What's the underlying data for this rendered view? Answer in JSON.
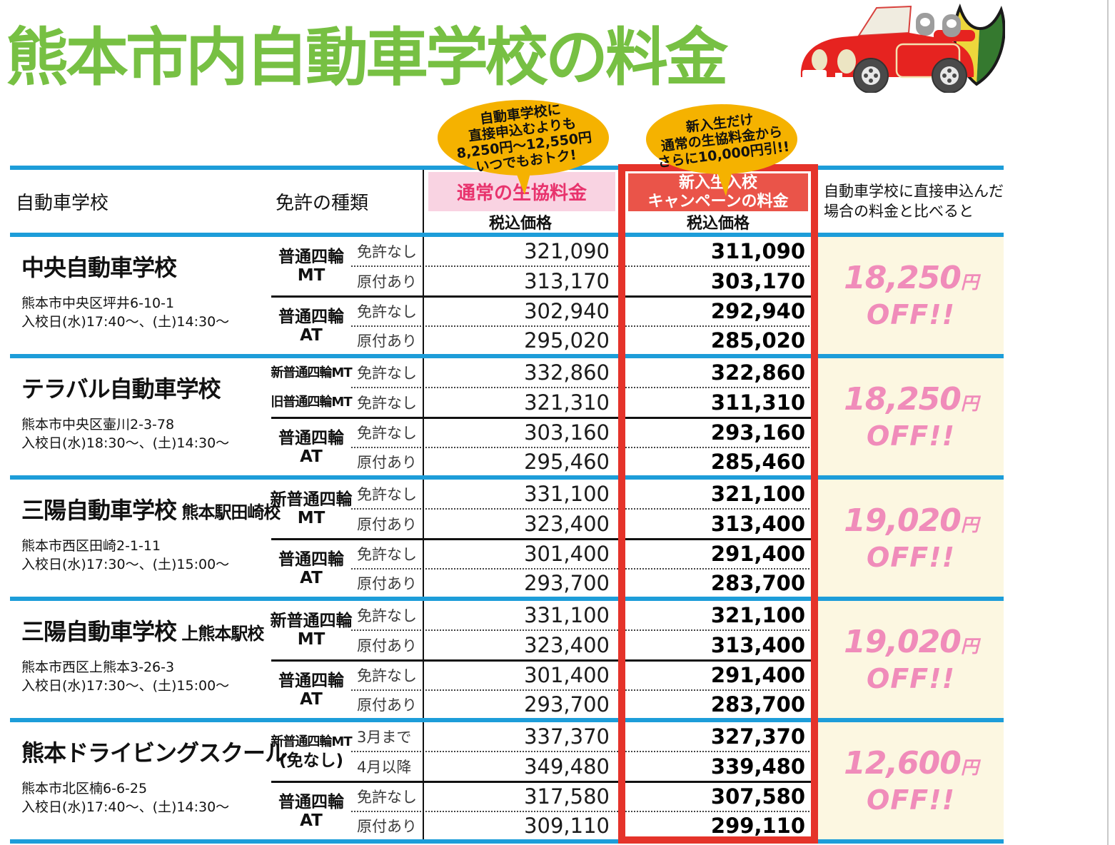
{
  "title": "熊本市内自動車学校の料金",
  "bubbles": {
    "left": {
      "lines": [
        "自動車学校に",
        "直接申込むよりも",
        "8,250円～12,550円",
        "いつでもおトク!"
      ]
    },
    "right": {
      "lines": [
        "新入生だけ",
        "通常の生協料金から",
        "さらに10,000円引!!"
      ]
    }
  },
  "header": {
    "school": "自動車学校",
    "license": "免許の種類",
    "regular": {
      "title": "通常の生協料金",
      "sub": "税込価格"
    },
    "campaign": {
      "title_line1": "新入生入校",
      "title_line2": "キャンペーンの料金",
      "sub": "税込価格"
    },
    "compare": {
      "line1": "自動車学校に直接申込んだ",
      "line2": "場合の料金と比べると"
    }
  },
  "schools": [
    {
      "name": "中央自動車学校",
      "suffix": "",
      "address": "熊本市中央区坪井6-10-1",
      "schedule": "入校日(水)17:40～、(土)14:30～",
      "groups": [
        {
          "types": [
            {
              "lines": [
                "普通四輪",
                "MT"
              ]
            }
          ],
          "rows": [
            {
              "cond": "免許なし",
              "regular": "321,090",
              "campaign": "311,090"
            },
            {
              "cond": "原付あり",
              "regular": "313,170",
              "campaign": "303,170"
            }
          ]
        },
        {
          "types": [
            {
              "lines": [
                "普通四輪",
                "AT"
              ]
            }
          ],
          "rows": [
            {
              "cond": "免許なし",
              "regular": "302,940",
              "campaign": "292,940"
            },
            {
              "cond": "原付あり",
              "regular": "295,020",
              "campaign": "285,020"
            }
          ]
        }
      ],
      "off": {
        "amount": "18,250",
        "unit": "円",
        "label": "OFF!!"
      }
    },
    {
      "name": "テラバル自動車学校",
      "suffix": "",
      "address": "熊本市中央区壷川2-3-78",
      "schedule": "入校日(水)18:30～、(土)14:30～",
      "groups": [
        {
          "types": [
            {
              "lines": [
                "新普通四輪MT"
              ]
            },
            {
              "lines": [
                "旧普通四輪MT"
              ]
            }
          ],
          "rows": [
            {
              "cond": "免許なし",
              "regular": "332,860",
              "campaign": "322,860"
            },
            {
              "cond": "免許なし",
              "regular": "321,310",
              "campaign": "311,310"
            }
          ]
        },
        {
          "types": [
            {
              "lines": [
                "普通四輪",
                "AT"
              ]
            }
          ],
          "rows": [
            {
              "cond": "免許なし",
              "regular": "303,160",
              "campaign": "293,160"
            },
            {
              "cond": "原付あり",
              "regular": "295,460",
              "campaign": "285,460"
            }
          ]
        }
      ],
      "off": {
        "amount": "18,250",
        "unit": "円",
        "label": "OFF!!"
      }
    },
    {
      "name": "三陽自動車学校",
      "suffix": "熊本駅田崎校",
      "address": "熊本市西区田崎2-1-11",
      "schedule": "入校日(水)17:30～、(土)15:00～",
      "groups": [
        {
          "types": [
            {
              "lines": [
                "新普通四輪",
                "MT"
              ]
            }
          ],
          "rows": [
            {
              "cond": "免許なし",
              "regular": "331,100",
              "campaign": "321,100"
            },
            {
              "cond": "原付あり",
              "regular": "323,400",
              "campaign": "313,400"
            }
          ]
        },
        {
          "types": [
            {
              "lines": [
                "普通四輪",
                "AT"
              ]
            }
          ],
          "rows": [
            {
              "cond": "免許なし",
              "regular": "301,400",
              "campaign": "291,400"
            },
            {
              "cond": "原付あり",
              "regular": "293,700",
              "campaign": "283,700"
            }
          ]
        }
      ],
      "off": {
        "amount": "19,020",
        "unit": "円",
        "label": "OFF!!"
      }
    },
    {
      "name": "三陽自動車学校",
      "suffix": "上熊本駅校",
      "address": "熊本市西区上熊本3-26-3",
      "schedule": "入校日(水)17:30～、(土)15:00～",
      "groups": [
        {
          "types": [
            {
              "lines": [
                "新普通四輪",
                "MT"
              ]
            }
          ],
          "rows": [
            {
              "cond": "免許なし",
              "regular": "331,100",
              "campaign": "321,100"
            },
            {
              "cond": "原付あり",
              "regular": "323,400",
              "campaign": "313,400"
            }
          ]
        },
        {
          "types": [
            {
              "lines": [
                "普通四輪",
                "AT"
              ]
            }
          ],
          "rows": [
            {
              "cond": "免許なし",
              "regular": "301,400",
              "campaign": "291,400"
            },
            {
              "cond": "原付あり",
              "regular": "293,700",
              "campaign": "283,700"
            }
          ]
        }
      ],
      "off": {
        "amount": "19,020",
        "unit": "円",
        "label": "OFF!!"
      }
    },
    {
      "name": "熊本ドライビングスクール",
      "suffix": "",
      "address": "熊本市北区楠6-6-25",
      "schedule": "入校日(水)17:40～、(土)14:30～",
      "groups": [
        {
          "types": [
            {
              "lines": [
                "新普通四輪MT",
                "(免なし)"
              ]
            }
          ],
          "rows": [
            {
              "cond": "3月まで",
              "regular": "337,370",
              "campaign": "327,370"
            },
            {
              "cond": "4月以降",
              "regular": "349,480",
              "campaign": "339,480"
            }
          ]
        },
        {
          "types": [
            {
              "lines": [
                "普通四輪",
                "AT"
              ]
            }
          ],
          "rows": [
            {
              "cond": "免許なし",
              "regular": "317,580",
              "campaign": "307,580"
            },
            {
              "cond": "原付あり",
              "regular": "309,110",
              "campaign": "299,110"
            }
          ]
        }
      ],
      "off": {
        "amount": "12,600",
        "unit": "円",
        "label": "OFF!!"
      }
    }
  ],
  "colors": {
    "title_green": "#77c043",
    "line_blue": "#1d9dd9",
    "frame_red": "#e5332a",
    "campaign_header_red": "#ea5449",
    "regular_header_pink_bg": "#f9d3e2",
    "regular_header_pink_text": "#e8336d",
    "off_pink": "#f08cba",
    "compare_cream": "#fcf7e1",
    "bubble_gold": "#f5b200"
  }
}
